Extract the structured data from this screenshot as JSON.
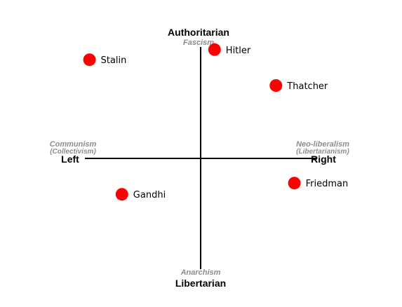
{
  "chart_data": {
    "type": "scatter",
    "axes": {
      "top": {
        "label": "Authoritarian",
        "sublabel": "Fascism"
      },
      "bottom": {
        "label": "Libertarian",
        "sublabel": "Anarchism"
      },
      "left": {
        "label": "Left",
        "sublabel": "Communism",
        "sublabel2": "(Collectivism)"
      },
      "right": {
        "label": "Right",
        "sublabel": "Neo-liberalism",
        "sublabel2": "(Libertarianism)"
      }
    },
    "xlim": [
      -1,
      1
    ],
    "ylim": [
      -1,
      1
    ],
    "grid": false,
    "points": [
      {
        "label": "Stalin",
        "x": -0.96,
        "y": 0.88
      },
      {
        "label": "Hitler",
        "x": 0.12,
        "y": 0.97
      },
      {
        "label": "Thatcher",
        "x": 0.65,
        "y": 0.65
      },
      {
        "label": "Gandhi",
        "x": -0.68,
        "y": -0.32
      },
      {
        "label": "Friedman",
        "x": 0.81,
        "y": -0.22
      }
    ]
  },
  "colors": {
    "axis": "#000000",
    "point": "#ff0000",
    "sublabel": "#8c8c8c"
  }
}
